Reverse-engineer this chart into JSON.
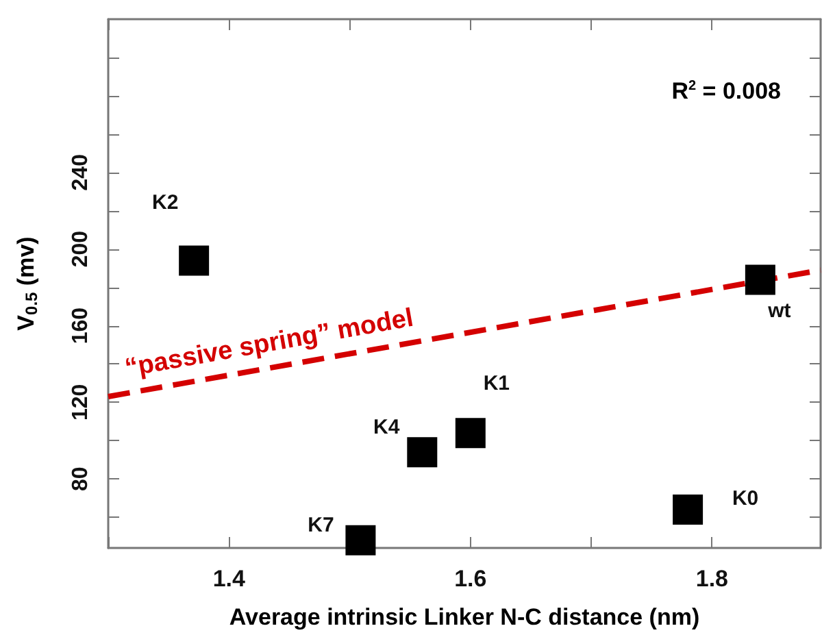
{
  "chart_data": {
    "type": "scatter",
    "xlabel": "Average intrinsic Linker N-C distance (nm)",
    "ylabel": "V$_{0.5}$ (mv)",
    "x": [
      1.371,
      1.509,
      1.56,
      1.6,
      1.78,
      1.84
    ],
    "series": [
      {
        "color": "#000000",
        "marker": "square",
        "values": [
          194,
          48,
          94,
          104,
          64,
          184
        ]
      },
      {
        "type": "line",
        "name": "“passive spring” model",
        "color": "#d40000",
        "line_style": "dashed",
        "marker": "none",
        "x": [
          1.3,
          1.89
        ],
        "values": [
          123,
          189
        ]
      }
    ],
    "xlim": [
      1.3,
      1.89
    ],
    "xticks": [
      {
        "value": 1.3,
        "label": null
      },
      1.4,
      {
        "value": 1.5,
        "label": null
      },
      1.6,
      {
        "value": 1.7,
        "label": null
      },
      1.8
    ],
    "ylim": [
      44,
      320
    ],
    "yticks": [
      {
        "value": 60,
        "label": null
      },
      80,
      {
        "value": 100,
        "label": null
      },
      120,
      {
        "value": 140,
        "label": null
      },
      160,
      {
        "value": 180,
        "label": null
      },
      200,
      {
        "value": 220,
        "label": null
      },
      240,
      {
        "value": 260,
        "label": null
      },
      {
        "value": 280,
        "label": null
      },
      {
        "value": 300,
        "label": null
      }
    ],
    "annotations": [
      {
        "text": "K2",
        "x": 1.371,
        "y": 194
      },
      {
        "text": "K7",
        "x": 1.509,
        "y": 48
      },
      {
        "text": "K4",
        "x": 1.56,
        "y": 94
      },
      {
        "text": "K1",
        "x": 1.6,
        "y": 104
      },
      {
        "text": "K0",
        "x": 1.78,
        "y": 64
      },
      {
        "text": "wt",
        "x": 1.84,
        "y": 184
      },
      "R$^{2}$ = 0.008"
    ],
    "grid": false,
    "legend": false
  }
}
